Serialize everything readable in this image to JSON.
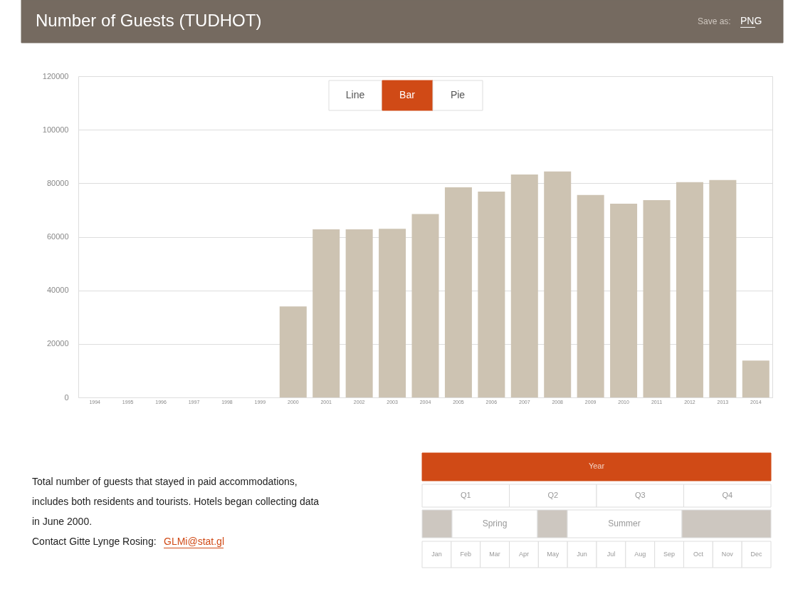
{
  "chart_data": {
    "type": "bar",
    "title": "Number of Guests (TUDHOT)",
    "categories": [
      "1994",
      "1995",
      "1996",
      "1997",
      "1998",
      "1999",
      "2000",
      "2001",
      "2002",
      "2003",
      "2004",
      "2005",
      "2006",
      "2007",
      "2008",
      "2009",
      "2010",
      "2011",
      "2012",
      "2013",
      "2014"
    ],
    "values": [
      null,
      null,
      null,
      null,
      null,
      null,
      34000,
      62800,
      62800,
      63000,
      68500,
      78500,
      76900,
      83300,
      84400,
      75600,
      72400,
      73700,
      80400,
      81200,
      13800
    ],
    "color": "#cdc3b2",
    "ylim": [
      0,
      120000
    ],
    "yticks": [
      0,
      20000,
      40000,
      60000,
      80000,
      100000,
      120000
    ],
    "grid": "y",
    "annotations": [
      "Save as:",
      "PNG",
      "Line",
      "Bar",
      "Pie",
      "Total number of guests that stayed in paid accommodations,",
      "includes both residents and tourists. Hotels began collecting data",
      "in June 2000.",
      "Contact Gitte Lynge Rosing:",
      "GLMi@stat.gl",
      "Year",
      "Q1",
      "Q2",
      "Q3",
      "Q4",
      "Spring",
      "Summer",
      "Jan",
      "Feb",
      "Mar",
      "Apr",
      "May",
      "Jun",
      "Jul",
      "Aug",
      "Sep",
      "Oct",
      "Nov",
      "Dec"
    ]
  }
}
